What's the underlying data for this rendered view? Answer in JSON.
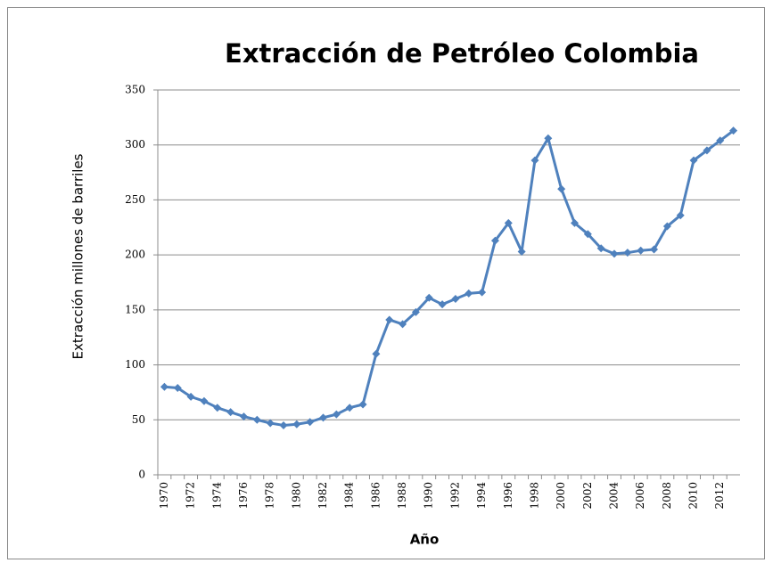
{
  "chart_data": {
    "type": "line",
    "title": "Extracción de Petróleo Colombia",
    "y_label": "Extracción millones de barriles",
    "x_label": "Año",
    "categories": [
      "1970",
      null,
      "1972",
      null,
      "1974",
      null,
      "1976",
      null,
      "1978",
      null,
      "1980",
      null,
      "1982",
      null,
      "1984",
      null,
      "1986",
      null,
      "1988",
      null,
      "1990",
      null,
      "1992",
      null,
      "1994",
      null,
      "1996",
      null,
      "1998",
      null,
      "2000",
      null,
      "2002",
      null,
      "2004",
      null,
      "2006",
      null,
      "2008",
      null,
      "2010",
      null,
      "2012",
      null
    ],
    "values": [
      80,
      79,
      71,
      67,
      61,
      57,
      53,
      50,
      47,
      45,
      46,
      48,
      52,
      55,
      61,
      64,
      110,
      141,
      137,
      148,
      161,
      155,
      160,
      165,
      166,
      213,
      229,
      203,
      286,
      306,
      260,
      229,
      219,
      206,
      201,
      202,
      204,
      205,
      226,
      236,
      286,
      295,
      304,
      313
    ],
    "color": "#4f81bd",
    "ylim": [
      0,
      350
    ],
    "yticks": [
      0,
      50,
      100,
      150,
      200,
      250,
      300,
      350
    ],
    "grid": true
  }
}
